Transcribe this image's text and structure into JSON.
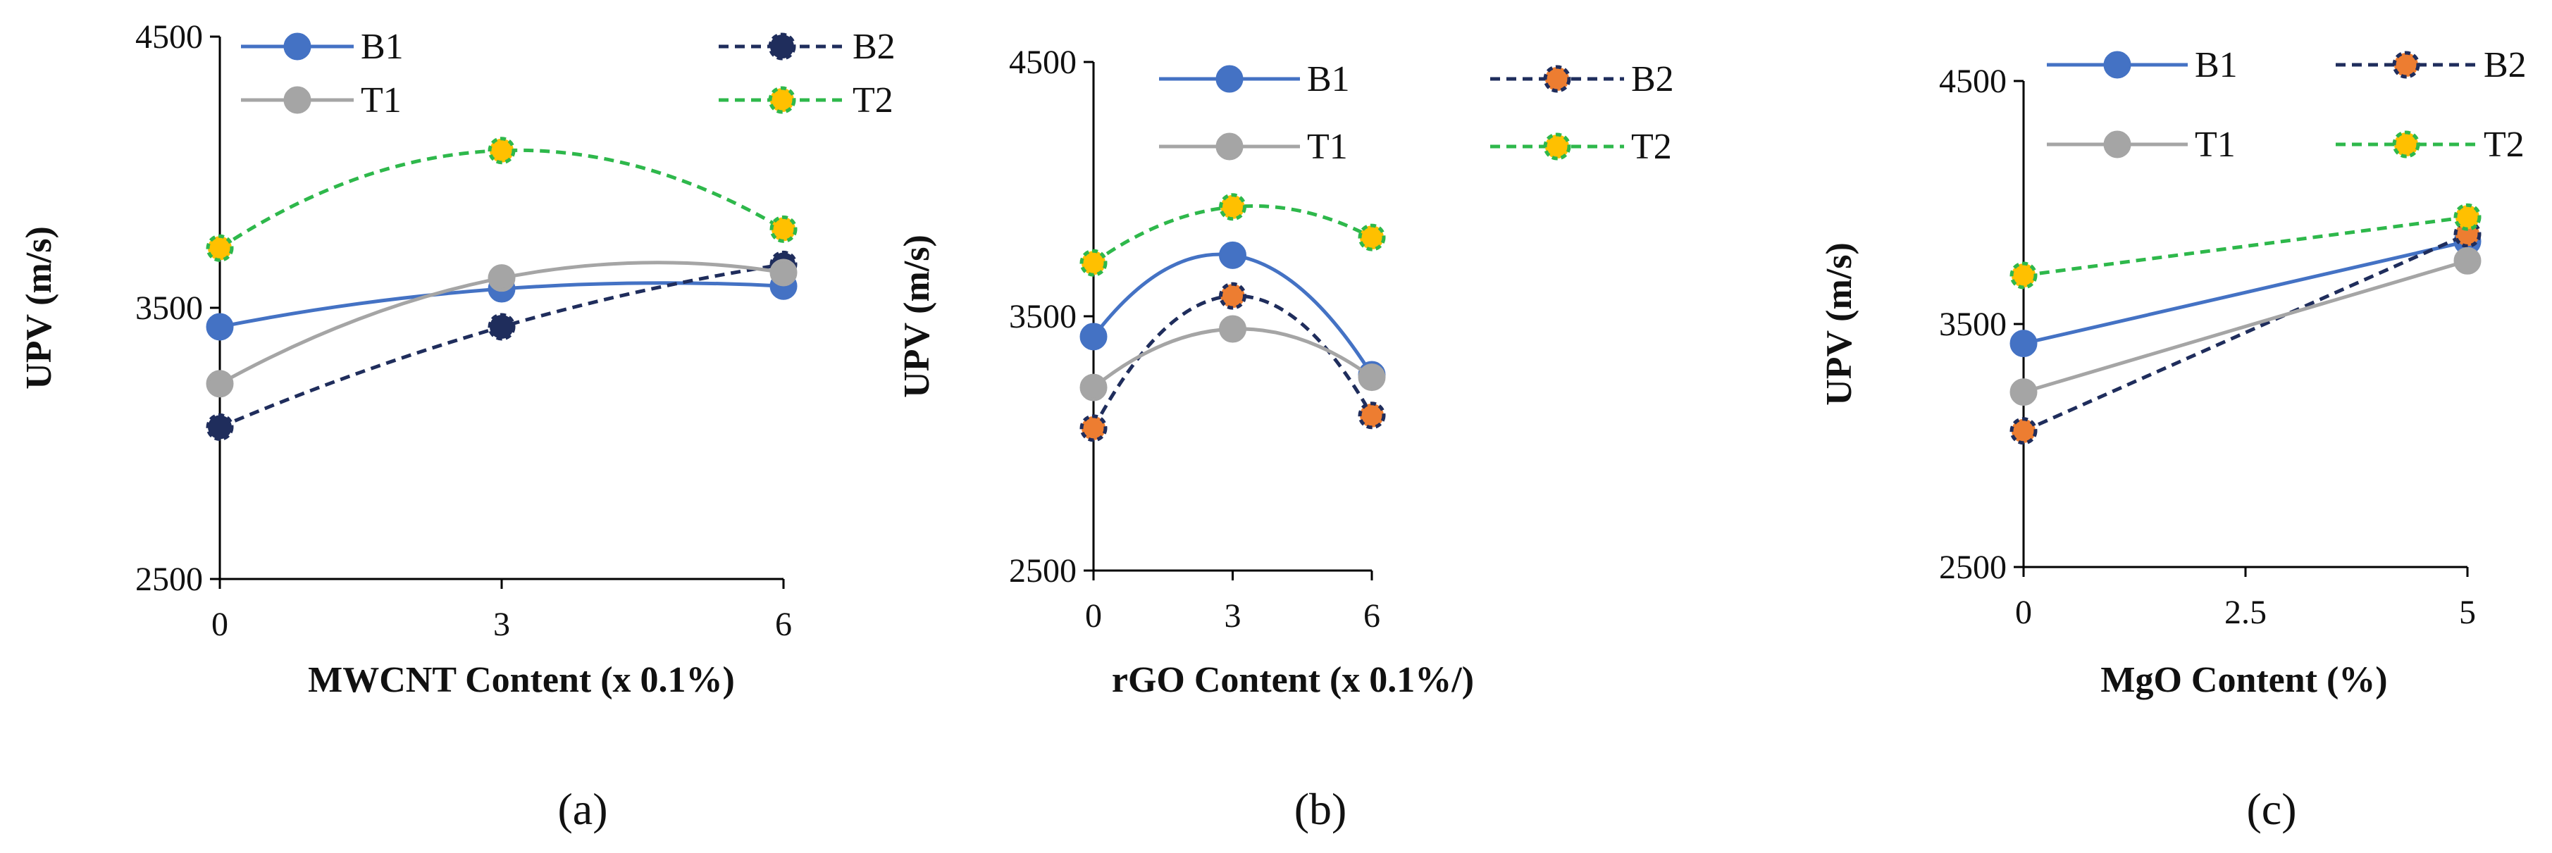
{
  "styles": {
    "B1": {
      "line": "#4472C4",
      "marker": "#4472C4",
      "edge": "#4472C4",
      "dash": false
    },
    "B2": {
      "line": "#1F2D5C",
      "dash": true
    },
    "T1": {
      "line": "#A5A5A5",
      "marker": "#A5A5A5",
      "edge": "#A5A5A5",
      "dash": false
    },
    "T2": {
      "line": "#2EB84B",
      "marker": "#FFC000",
      "edge": "#2EB84B",
      "dash": true
    }
  },
  "chart_data": [
    {
      "type": "line",
      "panel_label": "(a)",
      "xlabel": "MWCNT Content (x 0.1%)",
      "ylabel": "UPV (m/s)",
      "x": [
        0,
        3,
        6
      ],
      "xticks": [
        "0",
        "3",
        "6"
      ],
      "xlim": [
        0,
        6
      ],
      "yticks": [
        "4500",
        "3500",
        "2500"
      ],
      "ylim": [
        2500,
        4500
      ],
      "legend_position": "top",
      "series": [
        {
          "name": "B1",
          "values": [
            3430,
            3570,
            3580
          ],
          "marker": "#4472C4",
          "edge": "#4472C4"
        },
        {
          "name": "B2",
          "values": [
            3060,
            3430,
            3660
          ],
          "marker": "#1F2D5C",
          "edge": "#1F2D5C"
        },
        {
          "name": "T1",
          "values": [
            3220,
            3610,
            3630
          ],
          "marker": "#A5A5A5",
          "edge": "#A5A5A5"
        },
        {
          "name": "T2",
          "values": [
            3720,
            4080,
            3790
          ],
          "marker": "#FFC000",
          "edge": "#2EB84B"
        }
      ]
    },
    {
      "type": "line",
      "panel_label": "(b)",
      "xlabel": "rGO Content (x 0.1%/)",
      "ylabel": "UPV (m/s)",
      "x": [
        0,
        3,
        6
      ],
      "xticks": [
        "0",
        "3",
        "6"
      ],
      "xlim": [
        0,
        6
      ],
      "yticks": [
        "4500",
        "3500",
        "2500"
      ],
      "ylim": [
        2500,
        4500
      ],
      "legend_position": "top",
      "series": [
        {
          "name": "B1",
          "values": [
            3420,
            3740,
            3270
          ],
          "marker": "#4472C4",
          "edge": "#4472C4"
        },
        {
          "name": "B2",
          "values": [
            3060,
            3580,
            3110
          ],
          "marker": "#ED7D31",
          "edge": "#1F2D5C"
        },
        {
          "name": "T1",
          "values": [
            3220,
            3450,
            3260
          ],
          "marker": "#A5A5A5",
          "edge": "#A5A5A5"
        },
        {
          "name": "T2",
          "values": [
            3710,
            3930,
            3810
          ],
          "marker": "#FFC000",
          "edge": "#2EB84B"
        }
      ]
    },
    {
      "type": "line",
      "panel_label": "(c)",
      "xlabel": "MgO Content (%)",
      "ylabel": "UPV (m/s)",
      "x": [
        0,
        5
      ],
      "xticks": [
        "0",
        "2.5",
        "5"
      ],
      "xtick_values": [
        0,
        2.5,
        5
      ],
      "xlim": [
        0,
        5
      ],
      "yticks": [
        "4500",
        "3500",
        "2500"
      ],
      "ylim": [
        2500,
        4500
      ],
      "legend_position": "top",
      "series": [
        {
          "name": "B1",
          "values": [
            3420,
            3840
          ],
          "marker": "#4472C4",
          "edge": "#4472C4"
        },
        {
          "name": "B2",
          "values": [
            3060,
            3870
          ],
          "marker": "#ED7D31",
          "edge": "#1F2D5C"
        },
        {
          "name": "T1",
          "values": [
            3220,
            3760
          ],
          "marker": "#A5A5A5",
          "edge": "#A5A5A5"
        },
        {
          "name": "T2",
          "values": [
            3700,
            3940
          ],
          "marker": "#FFC000",
          "edge": "#2EB84B"
        }
      ]
    }
  ]
}
